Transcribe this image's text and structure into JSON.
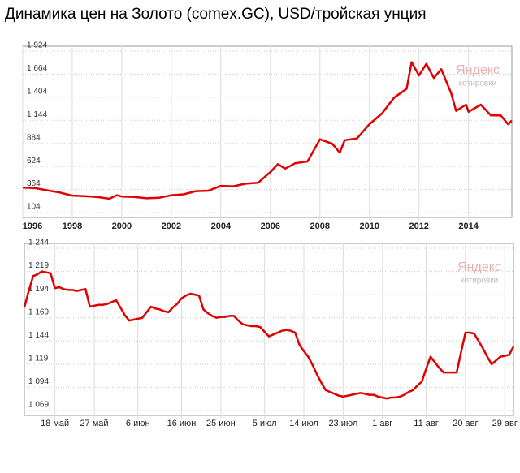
{
  "title": "Динамика цен на Золото (comex.GC), USD/тройская унция",
  "chart_data": [
    {
      "type": "line",
      "watermark": [
        "Яндекс",
        "котировки"
      ],
      "x": [
        1996,
        1996.5,
        1997,
        1997.5,
        1998,
        1998.5,
        1999,
        1999.5,
        1999.8,
        2000,
        2000.5,
        2001,
        2001.5,
        2002,
        2002.5,
        2003,
        2003.5,
        2004,
        2004.5,
        2005,
        2005.5,
        2006,
        2006.3,
        2006.6,
        2007,
        2007.5,
        2008,
        2008.5,
        2008.8,
        2009,
        2009.5,
        2010,
        2010.5,
        2011,
        2011.5,
        2011.7,
        2012,
        2012.3,
        2012.6,
        2012.9,
        2013.3,
        2013.5,
        2013.9,
        2014,
        2014.5,
        2014.9,
        2015.3,
        2015.6,
        2015.75
      ],
      "series": [
        {
          "color": "#e00000",
          "values": [
            385,
            380,
            355,
            330,
            295,
            290,
            280,
            260,
            300,
            285,
            280,
            265,
            270,
            300,
            310,
            345,
            350,
            405,
            400,
            430,
            440,
            560,
            650,
            600,
            660,
            680,
            930,
            880,
            780,
            920,
            940,
            1100,
            1220,
            1400,
            1500,
            1800,
            1650,
            1780,
            1620,
            1720,
            1450,
            1250,
            1320,
            1240,
            1320,
            1200,
            1200,
            1100,
            1140
          ]
        }
      ],
      "xlim": [
        1996,
        2015.75
      ],
      "xticks": [
        1996,
        1998,
        2000,
        2002,
        2004,
        2006,
        2008,
        2010,
        2012,
        2014
      ],
      "ylim": [
        104,
        1924
      ],
      "yticks": [
        {
          "value": 104,
          "label": "104"
        },
        {
          "value": 364,
          "label": "364"
        },
        {
          "value": 624,
          "label": "624"
        },
        {
          "value": 884,
          "label": "884"
        },
        {
          "value": 1144,
          "label": "1 144"
        },
        {
          "value": 1404,
          "label": "1 404"
        },
        {
          "value": 1664,
          "label": "1 664"
        },
        {
          "value": 1924,
          "label": "1 924"
        }
      ],
      "grid": true
    },
    {
      "type": "line",
      "watermark": [
        "Яндекс",
        "котировки"
      ],
      "categories": [
        null,
        null,
        null,
        null,
        null,
        null,
        null,
        "18 май",
        null,
        null,
        null,
        null,
        null,
        null,
        null,
        null,
        "27 май",
        null,
        null,
        null,
        null,
        null,
        null,
        null,
        null,
        null,
        "6 июн",
        null,
        null,
        null,
        null,
        null,
        null,
        null,
        null,
        null,
        "16 июн",
        null,
        null,
        null,
        null,
        null,
        null,
        null,
        null,
        "25 июн",
        null,
        null,
        null,
        null,
        null,
        null,
        null,
        null,
        null,
        "5 июл",
        null,
        null,
        null,
        null,
        null,
        null,
        null,
        null,
        "14 июл",
        null,
        null,
        null,
        null,
        null,
        null,
        null,
        null,
        "23 июл",
        null,
        null,
        null,
        null,
        null,
        null,
        null,
        null,
        "1 авг",
        null,
        null,
        null,
        null,
        null,
        null,
        null,
        null,
        null,
        "11 авг",
        null,
        null,
        null,
        null,
        null,
        null,
        null,
        null,
        "20 авг",
        null,
        null,
        null,
        null,
        null,
        null,
        null,
        null,
        "29 авг",
        null,
        null
      ],
      "series": [
        {
          "color": "#e00000",
          "values": [
            1180,
            1198,
            1214,
            1216,
            1219,
            1218,
            1217,
            1201,
            1202,
            1200,
            1199,
            1199,
            1198,
            1199,
            1200,
            1181,
            1182,
            1183,
            1183,
            1184,
            1186,
            1188,
            1180,
            1172,
            1166,
            1167,
            1168,
            1169,
            1175,
            1181,
            1179,
            1178,
            1176,
            1175,
            1180,
            1184,
            1190,
            1193,
            1195,
            1194,
            1193,
            1178,
            1174,
            1171,
            1169,
            1170,
            1170,
            1171,
            1171,
            1166,
            1162,
            1161,
            1160,
            1160,
            1159,
            1154,
            1149,
            1151,
            1153,
            1155,
            1156,
            1155,
            1153,
            1140,
            1133,
            1127,
            1118,
            1108,
            1099,
            1091,
            1089,
            1087,
            1085,
            1084,
            1085,
            1086,
            1087,
            1088,
            1087,
            1086,
            1086,
            1084,
            1083,
            1082,
            1083,
            1083,
            1084,
            1086,
            1089,
            1091,
            1096,
            1100,
            1114,
            1127,
            1121,
            1115,
            1110,
            1110,
            1110,
            1110,
            1132,
            1153,
            1153,
            1152,
            1144,
            1136,
            1127,
            1119,
            1123,
            1127,
            1128,
            1129,
            1138
          ]
        }
      ],
      "ylim": [
        1069,
        1244
      ],
      "yticks": [
        {
          "value": 1069,
          "label": "1 069"
        },
        {
          "value": 1094,
          "label": "1 094"
        },
        {
          "value": 1119,
          "label": "1 119"
        },
        {
          "value": 1144,
          "label": "1 144"
        },
        {
          "value": 1169,
          "label": "1 169"
        },
        {
          "value": 1194,
          "label": "1 194"
        },
        {
          "value": 1219,
          "label": "1 219"
        },
        {
          "value": 1244,
          "label": "1 244"
        }
      ],
      "grid": true
    }
  ]
}
